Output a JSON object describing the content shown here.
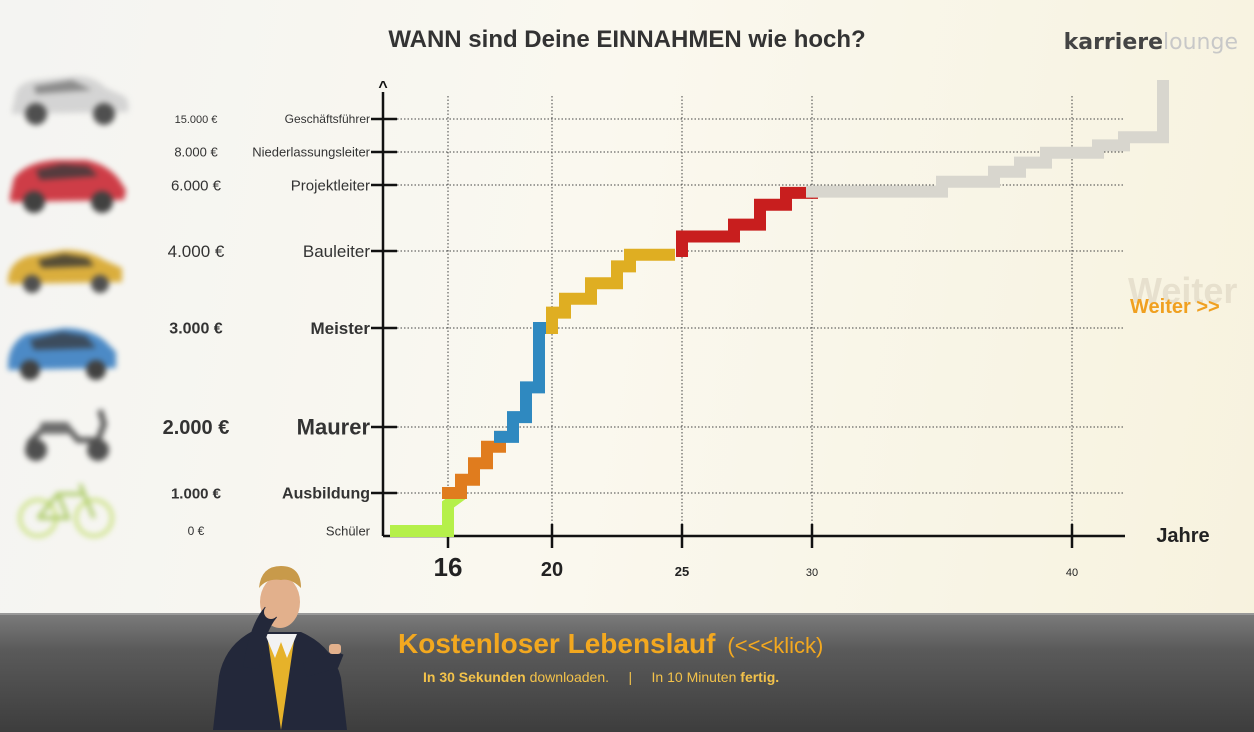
{
  "title": "WANN sind Deine EINNAHMEN wie hoch?",
  "brand": {
    "part1": "karriere",
    "part2": "lounge"
  },
  "weiter": {
    "ghost": "Weiter",
    "label": "Weiter >>"
  },
  "footer": {
    "headline": "Kostenloser Lebenslauf",
    "klick": "(<<<klick)",
    "sub1_bold": "In 30 Sekunden",
    "sub1_rest": "downloaden.",
    "sep": "|",
    "sub2_rest": "In 10 Minuten",
    "sub2_bold": "fertig."
  },
  "colors": {
    "schueler": "#b5f04a",
    "ausbildung": "#e07c1e",
    "maurer": "#2f89c0",
    "meister": "#dfae22",
    "bauleiter": "#c81e1e",
    "projektleiter": "#d8d6ce",
    "axis": "#111111"
  },
  "icons": [
    "suv-icon",
    "red-car-icon",
    "yellow-car-icon",
    "blue-car-icon",
    "scooter-icon",
    "bicycle-icon",
    "thinking-man-icon"
  ],
  "chart_data": {
    "type": "line",
    "xlabel": "Jahre",
    "x_ticks": [
      16,
      20,
      25,
      30,
      40
    ],
    "y_arrow": "^",
    "levels": [
      {
        "value": "0 €",
        "role": "Schüler"
      },
      {
        "value": "1.000 €",
        "role": "Ausbildung"
      },
      {
        "value": "2.000 €",
        "role": "Maurer"
      },
      {
        "value": "3.000 €",
        "role": "Meister"
      },
      {
        "value": "4.000 €",
        "role": "Bauleiter"
      },
      {
        "value": "6.000 €",
        "role": "Projektleiter"
      },
      {
        "value": "8.000 €",
        "role": "Niederlassungsleiter"
      },
      {
        "value": "15.000 €",
        "role": "Geschäftsführer"
      }
    ],
    "series": [
      {
        "stage": "Schüler",
        "color": "#b5f04a",
        "points": [
          [
            14,
            0
          ],
          [
            16,
            0
          ],
          [
            16,
            0.7
          ],
          [
            16.4,
            0.9
          ]
        ]
      },
      {
        "stage": "Ausbildung",
        "color": "#e07c1e",
        "points": [
          [
            16,
            1.0
          ],
          [
            16.5,
            1.0
          ],
          [
            16.5,
            1.2
          ],
          [
            17,
            1.2
          ],
          [
            17,
            1.45
          ],
          [
            17.5,
            1.45
          ],
          [
            17.5,
            1.7
          ],
          [
            18,
            1.7
          ],
          [
            18,
            1.85
          ]
        ]
      },
      {
        "stage": "Maurer",
        "color": "#2f89c0",
        "points": [
          [
            18,
            1.85
          ],
          [
            18.5,
            1.85
          ],
          [
            18.5,
            2.1
          ],
          [
            19,
            2.1
          ],
          [
            19,
            2.4
          ],
          [
            19.5,
            2.4
          ],
          [
            19.5,
            3.0
          ],
          [
            20,
            3.0
          ]
        ]
      },
      {
        "stage": "Meister",
        "color": "#dfae22",
        "points": [
          [
            20,
            3.0
          ],
          [
            20,
            3.2
          ],
          [
            20.5,
            3.2
          ],
          [
            20.5,
            3.38
          ],
          [
            21.5,
            3.38
          ],
          [
            21.5,
            3.58
          ],
          [
            22.5,
            3.58
          ],
          [
            22.5,
            3.8
          ],
          [
            23,
            3.8
          ],
          [
            23,
            3.95
          ],
          [
            24.5,
            3.95
          ]
        ]
      },
      {
        "stage": "Bauleiter",
        "color": "#c81e1e",
        "points": [
          [
            25,
            4.0
          ],
          [
            25,
            4.22
          ],
          [
            27,
            4.22
          ],
          [
            27,
            4.4
          ],
          [
            28,
            4.4
          ],
          [
            28,
            4.7
          ],
          [
            29,
            4.7
          ],
          [
            29,
            4.88
          ],
          [
            30,
            4.88
          ]
        ]
      },
      {
        "stage": "Projektleiter+",
        "color": "#d8d6ce",
        "points": [
          [
            30,
            4.9
          ],
          [
            35,
            4.9
          ],
          [
            35,
            5.1
          ],
          [
            37,
            5.1
          ],
          [
            37,
            5.4
          ],
          [
            38,
            5.4
          ],
          [
            38,
            5.68
          ],
          [
            39,
            5.68
          ],
          [
            39,
            5.98
          ],
          [
            41,
            5.98
          ],
          [
            41,
            6.2
          ],
          [
            42,
            6.2
          ],
          [
            42,
            6.45
          ],
          [
            43.5,
            6.45
          ],
          [
            43.5,
            8.0
          ]
        ]
      }
    ]
  }
}
